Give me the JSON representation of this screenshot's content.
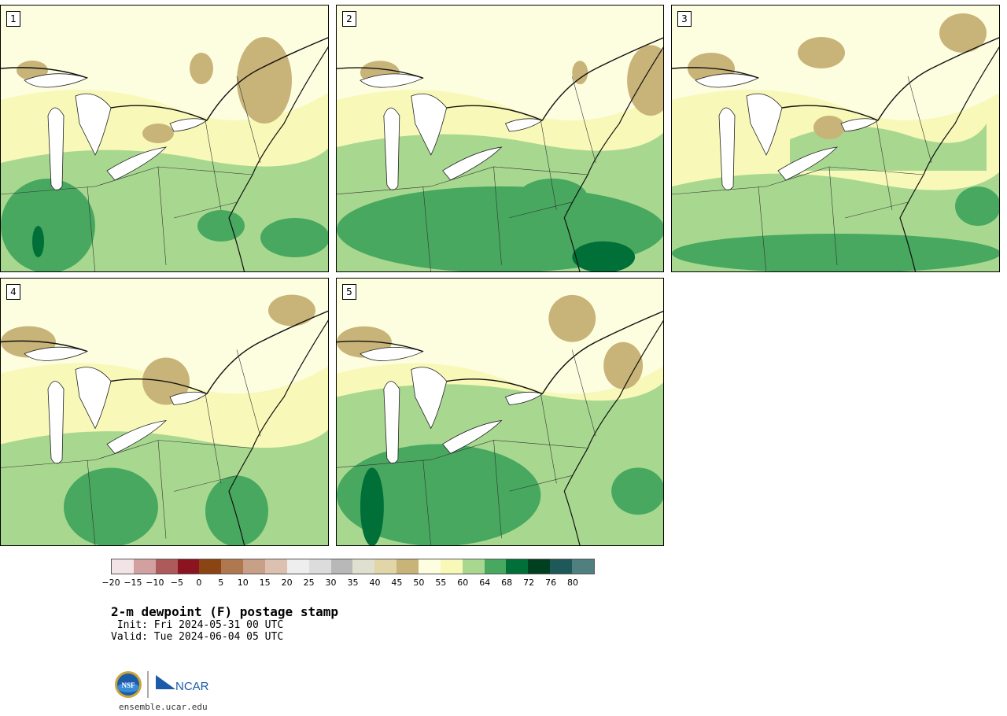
{
  "panels": [
    {
      "label": "1"
    },
    {
      "label": "2"
    },
    {
      "label": "3"
    },
    {
      "label": "4"
    },
    {
      "label": "5"
    }
  ],
  "colorbar": {
    "colors": [
      "#f2e4e4",
      "#d2a0a0",
      "#ad5a5a",
      "#8b1420",
      "#8b4513",
      "#b07850",
      "#c8a088",
      "#dcc0b0",
      "#eeeeee",
      "#dcdcdc",
      "#b8b8b8",
      "#e0e0d0",
      "#e2d5a8",
      "#c8b478",
      "#fdfde0",
      "#f8f8b8",
      "#a8d890",
      "#48a860",
      "#007038",
      "#004020",
      "#1f5858",
      "#4f7f7f"
    ],
    "tick_labels": [
      "−20",
      "−15",
      "−10",
      "−5",
      "0",
      "5",
      "10",
      "15",
      "20",
      "25",
      "30",
      "35",
      "40",
      "45",
      "50",
      "55",
      "60",
      "64",
      "68",
      "72",
      "76",
      "80"
    ]
  },
  "title": "2-m dewpoint (F) postage stamp",
  "init_line": " Init: Fri 2024-05-31 00 UTC",
  "valid_line": "Valid: Tue 2024-06-04 05 UTC",
  "logo_text": {
    "nsf": "NSF",
    "ncar": "NCAR"
  },
  "url": "ensemble.ucar.edu"
}
